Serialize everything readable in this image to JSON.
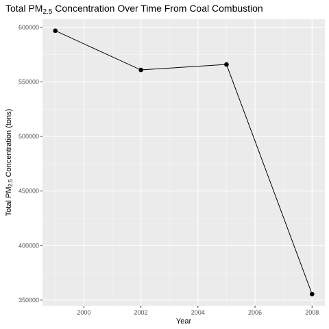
{
  "colors": {
    "panel": "#ebebeb",
    "grid_major": "#ffffff",
    "grid_minor": "#f5f5f5",
    "line": "#000000",
    "point": "#000000",
    "tick": "#333333"
  },
  "chart_data": {
    "type": "line",
    "title": {
      "pre": "Total PM",
      "sub": "2.5",
      "post": " Concentration Over Time From Coal Combustion"
    },
    "xlabel": "Year",
    "ylabel": {
      "pre": "Total PM",
      "sub": "2.5",
      "post": " Concentration (tons)"
    },
    "x": [
      1999,
      2002,
      2005,
      2008
    ],
    "series": [
      {
        "values": [
          596911,
          561000,
          566000,
          355500
        ]
      }
    ],
    "xlim": [
      1998.55,
      2008.45
    ],
    "ylim": [
      344900,
      607500
    ],
    "x_ticks": [
      2000,
      2002,
      2004,
      2006,
      2008
    ],
    "y_ticks": [
      350000,
      400000,
      450000,
      500000,
      550000,
      600000
    ],
    "x_tick_labels": [
      "2000",
      "2002",
      "2004",
      "2006",
      "2008"
    ],
    "y_tick_labels": [
      "350000",
      "400000",
      "450000",
      "500000",
      "550000",
      "600000"
    ],
    "grid": true,
    "markers": true
  }
}
